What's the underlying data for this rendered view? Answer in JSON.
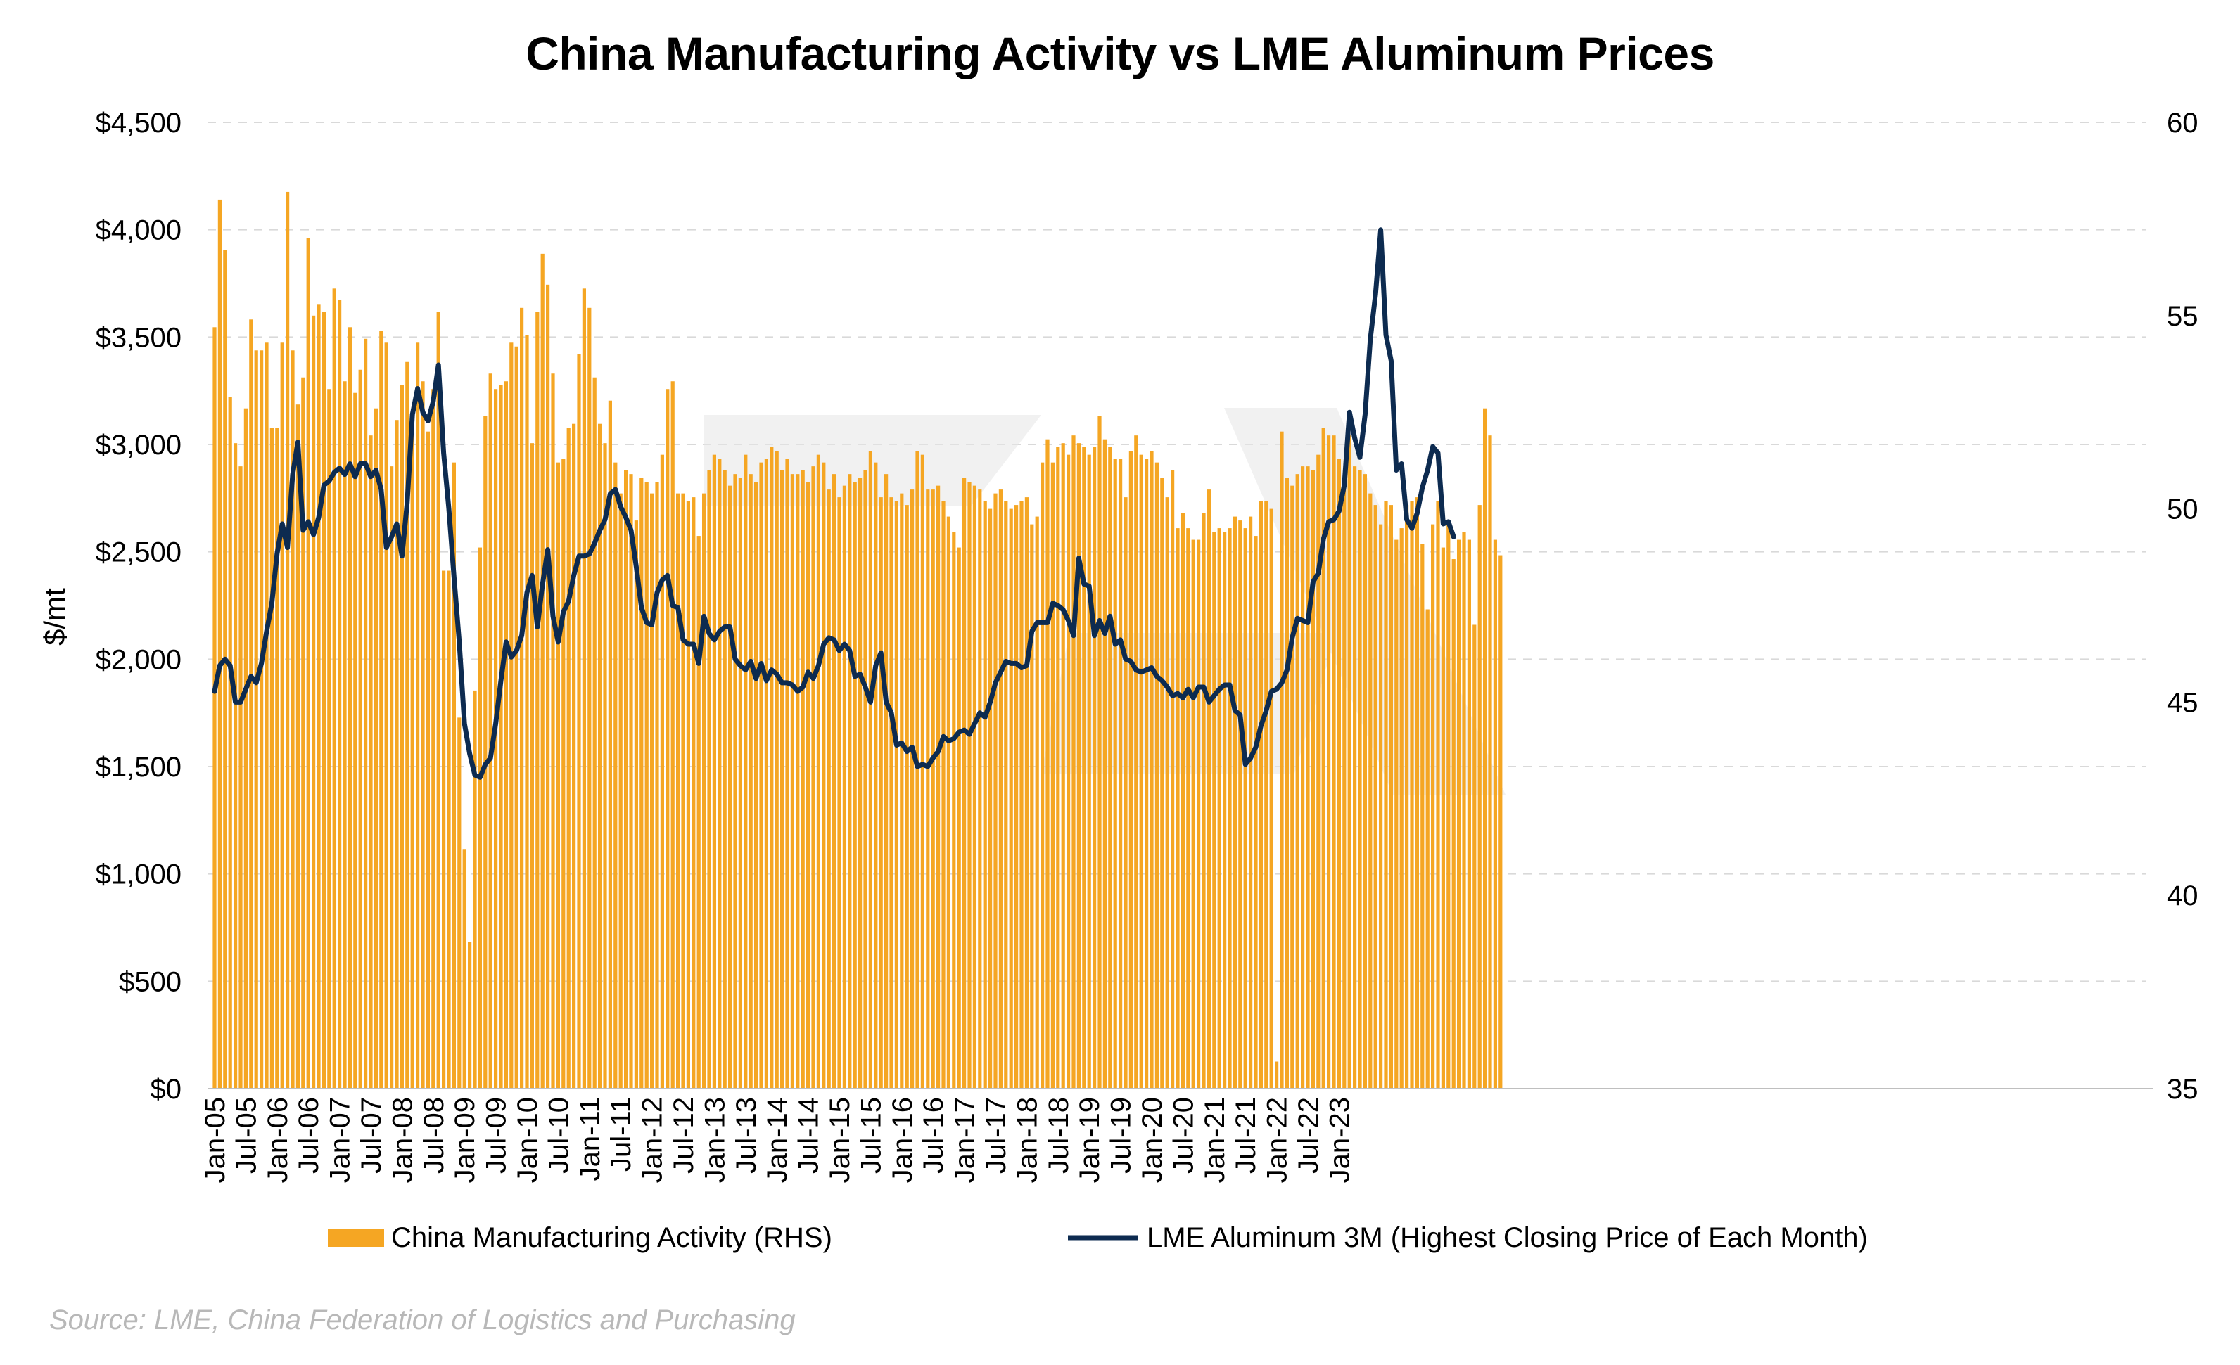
{
  "chart_data": {
    "type": "bar+line",
    "title": "China Manufacturing Activity vs LME Aluminum Prices",
    "ylabel_left": "$/mt",
    "ylim_left": [
      0,
      4500
    ],
    "yticks_left": [
      "$0",
      "$500",
      "$1,000",
      "$1,500",
      "$2,000",
      "$2,500",
      "$3,000",
      "$3,500",
      "$4,000",
      "$4,500"
    ],
    "ylim_right": [
      35,
      60
    ],
    "yticks_right": [
      "35",
      "40",
      "45",
      "50",
      "55",
      "60"
    ],
    "x_tick_labels": [
      "Jan-05",
      "Jul-05",
      "Jan-06",
      "Jul-06",
      "Jan-07",
      "Jul-07",
      "Jan-08",
      "Jul-08",
      "Jan-09",
      "Jul-09",
      "Jan-10",
      "Jul-10",
      "Jan-11",
      "Jul-11",
      "Jan-12",
      "Jul-12",
      "Jan-13",
      "Jul-13",
      "Jan-14",
      "Jul-14",
      "Jan-15",
      "Jul-15",
      "Jan-16",
      "Jul-16",
      "Jan-17",
      "Jul-17",
      "Jan-18",
      "Jul-18",
      "Jan-19",
      "Jul-19",
      "Jan-20",
      "Jul-20",
      "Jan-21",
      "Jul-21",
      "Jan-22",
      "Jul-22",
      "Jan-23"
    ],
    "grid": "horizontal dashed",
    "legend_position": "bottom",
    "start_month": "Jan-05",
    "series": [
      {
        "name": "China Manufacturing Activity (RHS)",
        "type": "bar",
        "axis": "right",
        "color": "#F5A623",
        "values": [
          54.7,
          58.0,
          56.7,
          52.9,
          51.7,
          51.1,
          52.6,
          54.9,
          54.1,
          54.1,
          54.3,
          52.1,
          52.1,
          54.3,
          58.2,
          54.1,
          52.7,
          53.4,
          57.0,
          55.0,
          55.3,
          55.1,
          53.1,
          55.7,
          55.4,
          53.3,
          54.7,
          53.0,
          53.6,
          54.4,
          51.9,
          52.6,
          54.6,
          54.3,
          51.1,
          52.3,
          53.2,
          53.8,
          52.3,
          54.3,
          53.3,
          52.0,
          53.1,
          55.1,
          48.4,
          48.4,
          51.2,
          44.6,
          41.2,
          38.8,
          45.3,
          49.0,
          52.4,
          53.5,
          53.1,
          53.2,
          53.3,
          54.3,
          54.2,
          55.2,
          54.5,
          51.7,
          55.1,
          56.6,
          55.8,
          53.5,
          51.2,
          51.3,
          52.1,
          52.2,
          54.0,
          55.7,
          55.2,
          53.4,
          52.2,
          51.7,
          52.8,
          51.2,
          50.4,
          51.0,
          50.9,
          49.7,
          50.8,
          50.7,
          50.4,
          50.7,
          51.4,
          53.1,
          53.3,
          50.4,
          50.4,
          50.2,
          50.3,
          49.3,
          50.4,
          51.0,
          51.4,
          51.3,
          51.0,
          50.6,
          50.9,
          50.8,
          51.4,
          50.9,
          50.7,
          51.2,
          51.3,
          51.6,
          51.5,
          51.0,
          51.3,
          50.9,
          50.9,
          51.0,
          50.7,
          51.1,
          51.4,
          51.2,
          50.5,
          50.9,
          50.3,
          50.6,
          50.9,
          50.7,
          50.8,
          51.0,
          51.5,
          51.2,
          50.3,
          50.9,
          50.3,
          50.2,
          50.4,
          50.1,
          50.5,
          51.5,
          51.4,
          50.5,
          50.5,
          50.6,
          50.2,
          49.8,
          49.4,
          49.0,
          50.8,
          50.7,
          50.6,
          50.5,
          50.2,
          50.0,
          50.4,
          50.5,
          50.2,
          50.0,
          50.1,
          50.2,
          50.3,
          49.6,
          49.8,
          51.2,
          51.8,
          51.2,
          51.6,
          51.7,
          51.4,
          51.9,
          51.7,
          51.6,
          51.4,
          51.6,
          52.4,
          51.8,
          51.6,
          51.3,
          51.3,
          50.3,
          51.5,
          51.9,
          51.4,
          51.3,
          51.5,
          51.2,
          50.8,
          50.3,
          51.0,
          49.5,
          49.9,
          49.5,
          49.2,
          49.2,
          49.9,
          50.5,
          49.4,
          49.5,
          49.4,
          49.5,
          49.8,
          49.7,
          49.5,
          49.8,
          49.3,
          50.2,
          50.2,
          50.0,
          35.7,
          52.0,
          50.8,
          50.6,
          50.9,
          51.1,
          51.1,
          51.0,
          51.4,
          52.1,
          51.9,
          51.9,
          51.3,
          50.6,
          51.9,
          51.1,
          51.0,
          50.9,
          50.4,
          50.1,
          49.6,
          50.2,
          50.1,
          49.2,
          49.5,
          50.1,
          50.2,
          50.3,
          49.1,
          47.4,
          49.6,
          50.2,
          49.0,
          49.7,
          48.7,
          49.2,
          49.4,
          49.2,
          47.0,
          50.1,
          52.6,
          51.9,
          49.2,
          48.8
        ]
      },
      {
        "name": "LME Aluminum 3M (Highest Closing Price of Each Month)",
        "type": "line",
        "axis": "left",
        "color": "#0D2B50",
        "values": [
          1850,
          1970,
          2000,
          1970,
          1800,
          1800,
          1860,
          1920,
          1890,
          1980,
          2130,
          2260,
          2490,
          2630,
          2520,
          2860,
          3010,
          2600,
          2640,
          2580,
          2660,
          2810,
          2830,
          2870,
          2890,
          2860,
          2910,
          2850,
          2910,
          2910,
          2850,
          2880,
          2790,
          2520,
          2570,
          2630,
          2480,
          2730,
          3140,
          3260,
          3150,
          3110,
          3200,
          3370,
          2960,
          2700,
          2380,
          2080,
          1700,
          1560,
          1460,
          1450,
          1510,
          1540,
          1700,
          1900,
          2080,
          2010,
          2040,
          2110,
          2310,
          2390,
          2150,
          2350,
          2510,
          2200,
          2080,
          2220,
          2270,
          2390,
          2480,
          2480,
          2490,
          2540,
          2600,
          2650,
          2770,
          2790,
          2710,
          2660,
          2600,
          2430,
          2240,
          2170,
          2160,
          2310,
          2370,
          2390,
          2250,
          2240,
          2090,
          2070,
          2070,
          1980,
          2200,
          2120,
          2090,
          2130,
          2150,
          2150,
          2000,
          1970,
          1950,
          1990,
          1910,
          1980,
          1900,
          1950,
          1930,
          1890,
          1890,
          1880,
          1850,
          1870,
          1940,
          1910,
          1970,
          2070,
          2100,
          2090,
          2040,
          2070,
          2040,
          1920,
          1930,
          1870,
          1800,
          1970,
          2030,
          1800,
          1750,
          1600,
          1610,
          1570,
          1590,
          1500,
          1510,
          1500,
          1540,
          1570,
          1640,
          1620,
          1630,
          1660,
          1670,
          1650,
          1700,
          1750,
          1730,
          1800,
          1890,
          1940,
          1990,
          1980,
          1980,
          1960,
          1970,
          2130,
          2170,
          2170,
          2170,
          2260,
          2250,
          2230,
          2180,
          2110,
          2470,
          2350,
          2340,
          2110,
          2180,
          2120,
          2200,
          2070,
          2090,
          2000,
          1990,
          1950,
          1940,
          1950,
          1960,
          1920,
          1900,
          1870,
          1830,
          1840,
          1820,
          1860,
          1820,
          1870,
          1870,
          1800,
          1830,
          1860,
          1880,
          1880,
          1760,
          1740,
          1510,
          1540,
          1590,
          1690,
          1760,
          1850,
          1860,
          1890,
          1950,
          2100,
          2190,
          2180,
          2170,
          2360,
          2400,
          2560,
          2640,
          2650,
          2690,
          2810,
          3150,
          3030,
          2940,
          3140,
          3490,
          3700,
          4000,
          3510,
          3390,
          2880,
          2910,
          2650,
          2610,
          2680,
          2800,
          2880,
          2990,
          2960,
          2630,
          2640,
          2570
        ]
      }
    ]
  },
  "legend": {
    "bar_label": "China Manufacturing Activity (RHS)",
    "line_label": "LME Aluminum 3M (Highest Closing Price of Each Month)"
  },
  "source": "Source: LME, China Federation of Logistics and Purchasing"
}
